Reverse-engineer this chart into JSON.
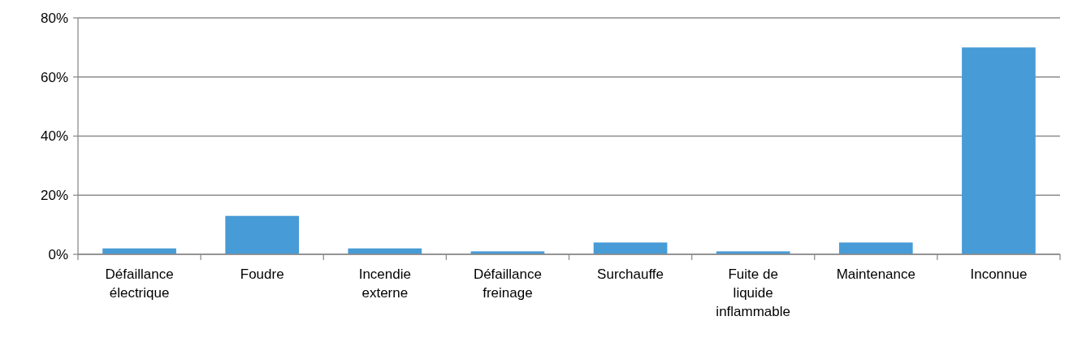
{
  "chart_data": {
    "type": "bar",
    "categories": [
      "Défaillance électrique",
      "Foudre",
      "Incendie externe",
      "Défaillance freinage",
      "Surchauffe",
      "Fuite de liquide inflammable",
      "Maintenance",
      "Inconnue"
    ],
    "values": [
      2,
      13,
      2,
      1,
      4,
      1,
      4,
      70
    ],
    "color": "#479bd6",
    "ylim": [
      0,
      80
    ],
    "yticks": [
      {
        "value": 0,
        "label": "0%"
      },
      {
        "value": 20,
        "label": "20%"
      },
      {
        "value": 40,
        "label": "40%"
      },
      {
        "value": 60,
        "label": "60%"
      },
      {
        "value": 80,
        "label": "80%"
      }
    ],
    "grid": "y"
  }
}
